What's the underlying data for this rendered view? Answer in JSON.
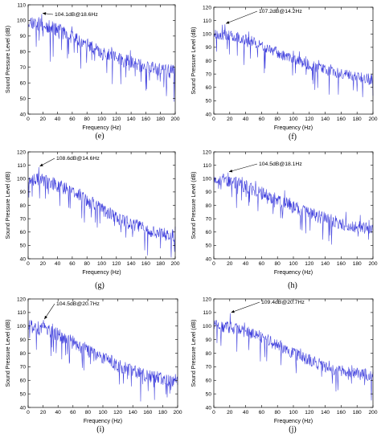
{
  "chart_data": [
    {
      "panel": "e",
      "caption": "(e)",
      "type": "line",
      "xlabel": "Frequency (Hz)",
      "ylabel": "Sound Pressure Level (dB)",
      "xlim": [
        0,
        200
      ],
      "ylim": [
        40,
        110
      ],
      "xticks": [
        0,
        20,
        40,
        60,
        80,
        100,
        120,
        140,
        160,
        180,
        200
      ],
      "yticks": [
        40,
        50,
        60,
        70,
        80,
        90,
        100,
        110
      ],
      "annotation": {
        "text": "104.1dB@18.6Hz",
        "x": 18.6,
        "y": 104.1
      },
      "trend": [
        [
          0,
          100
        ],
        [
          20,
          97
        ],
        [
          40,
          94
        ],
        [
          60,
          89
        ],
        [
          80,
          84
        ],
        [
          100,
          79
        ],
        [
          120,
          76
        ],
        [
          140,
          73
        ],
        [
          160,
          70
        ],
        [
          180,
          68
        ],
        [
          200,
          67
        ]
      ],
      "noise": 4.5,
      "seed": 11,
      "grid": false
    },
    {
      "panel": "f",
      "caption": "(f)",
      "type": "line",
      "xlabel": "Frequency (Hz)",
      "ylabel": "Sound Pressure Level (dB)",
      "xlim": [
        0,
        200
      ],
      "ylim": [
        40,
        120
      ],
      "xticks": [
        0,
        20,
        40,
        60,
        80,
        100,
        120,
        140,
        160,
        180,
        200
      ],
      "yticks": [
        40,
        50,
        60,
        70,
        80,
        90,
        100,
        110,
        120
      ],
      "annotation": {
        "text": "107.2dB@14.2Hz",
        "x": 14.2,
        "y": 107.2
      },
      "trend": [
        [
          0,
          100
        ],
        [
          20,
          99
        ],
        [
          40,
          96
        ],
        [
          60,
          92
        ],
        [
          80,
          86
        ],
        [
          100,
          81
        ],
        [
          120,
          77
        ],
        [
          140,
          73
        ],
        [
          160,
          70
        ],
        [
          180,
          68
        ],
        [
          200,
          66
        ]
      ],
      "noise": 4.0,
      "seed": 23,
      "grid": false
    },
    {
      "panel": "g",
      "caption": "(g)",
      "type": "line",
      "xlabel": "Frequency (Hz)",
      "ylabel": "Sound Pressure Level (dB)",
      "xlim": [
        0,
        200
      ],
      "ylim": [
        40,
        120
      ],
      "xticks": [
        0,
        20,
        40,
        60,
        80,
        100,
        120,
        140,
        160,
        180,
        200
      ],
      "yticks": [
        40,
        50,
        60,
        70,
        80,
        90,
        100,
        110,
        120
      ],
      "annotation": {
        "text": "108.6dB@14.6Hz",
        "x": 14.6,
        "y": 108.6
      },
      "trend": [
        [
          0,
          100
        ],
        [
          20,
          99
        ],
        [
          40,
          95
        ],
        [
          60,
          90
        ],
        [
          80,
          84
        ],
        [
          100,
          77
        ],
        [
          120,
          71
        ],
        [
          140,
          66
        ],
        [
          160,
          62
        ],
        [
          180,
          59
        ],
        [
          200,
          57
        ]
      ],
      "noise": 5.0,
      "seed": 37,
      "grid": false
    },
    {
      "panel": "h",
      "caption": "(h)",
      "type": "line",
      "xlabel": "Frequency (Hz)",
      "ylabel": "Sound Pressure Level (dB)",
      "xlim": [
        0,
        200
      ],
      "ylim": [
        40,
        120
      ],
      "xticks": [
        0,
        20,
        40,
        60,
        80,
        100,
        120,
        140,
        160,
        180,
        200
      ],
      "yticks": [
        40,
        50,
        60,
        70,
        80,
        90,
        100,
        110,
        120
      ],
      "annotation": {
        "text": "104.5dB@18.1Hz",
        "x": 18.1,
        "y": 104.5
      },
      "trend": [
        [
          0,
          100
        ],
        [
          20,
          98
        ],
        [
          40,
          94
        ],
        [
          60,
          89
        ],
        [
          80,
          84
        ],
        [
          100,
          79
        ],
        [
          120,
          74
        ],
        [
          140,
          70
        ],
        [
          160,
          66
        ],
        [
          180,
          64
        ],
        [
          200,
          62
        ]
      ],
      "noise": 5.0,
      "seed": 53,
      "grid": false
    },
    {
      "panel": "i",
      "caption": "(i)",
      "type": "line",
      "xlabel": "Frequency (Hz)",
      "ylabel": "Sound Pressure Level (dB)",
      "xlim": [
        0,
        200
      ],
      "ylim": [
        40,
        120
      ],
      "xticks": [
        0,
        20,
        40,
        60,
        80,
        100,
        120,
        140,
        160,
        180,
        200
      ],
      "yticks": [
        40,
        50,
        60,
        70,
        80,
        90,
        100,
        110,
        120
      ],
      "annotation": {
        "text": "104.5dB@20.7Hz",
        "x": 20.7,
        "y": 104.5
      },
      "trend": [
        [
          0,
          100
        ],
        [
          20,
          98
        ],
        [
          40,
          94
        ],
        [
          60,
          88
        ],
        [
          80,
          82
        ],
        [
          100,
          77
        ],
        [
          120,
          71
        ],
        [
          140,
          67
        ],
        [
          160,
          63
        ],
        [
          180,
          61
        ],
        [
          200,
          60
        ]
      ],
      "noise": 5.0,
      "seed": 71,
      "grid": false
    },
    {
      "panel": "j",
      "caption": "(j)",
      "type": "line",
      "xlabel": "Frequency (Hz)",
      "ylabel": "Sound Pressure Level (dB)",
      "xlim": [
        0,
        200
      ],
      "ylim": [
        40,
        120
      ],
      "xticks": [
        0,
        20,
        40,
        60,
        80,
        100,
        120,
        140,
        160,
        180,
        200
      ],
      "yticks": [
        40,
        50,
        60,
        70,
        80,
        90,
        100,
        110,
        120
      ],
      "annotation": {
        "text": "109.4dB@20.7Hz",
        "x": 20.7,
        "y": 109.4
      },
      "trend": [
        [
          0,
          100
        ],
        [
          20,
          99
        ],
        [
          40,
          96
        ],
        [
          60,
          92
        ],
        [
          80,
          86
        ],
        [
          100,
          80
        ],
        [
          120,
          75
        ],
        [
          140,
          70
        ],
        [
          160,
          67
        ],
        [
          180,
          65
        ],
        [
          200,
          64
        ]
      ],
      "noise": 4.5,
      "seed": 89,
      "grid": false
    }
  ],
  "style": {
    "line_color": "#3b3bdc",
    "axis_color": "#000000"
  }
}
